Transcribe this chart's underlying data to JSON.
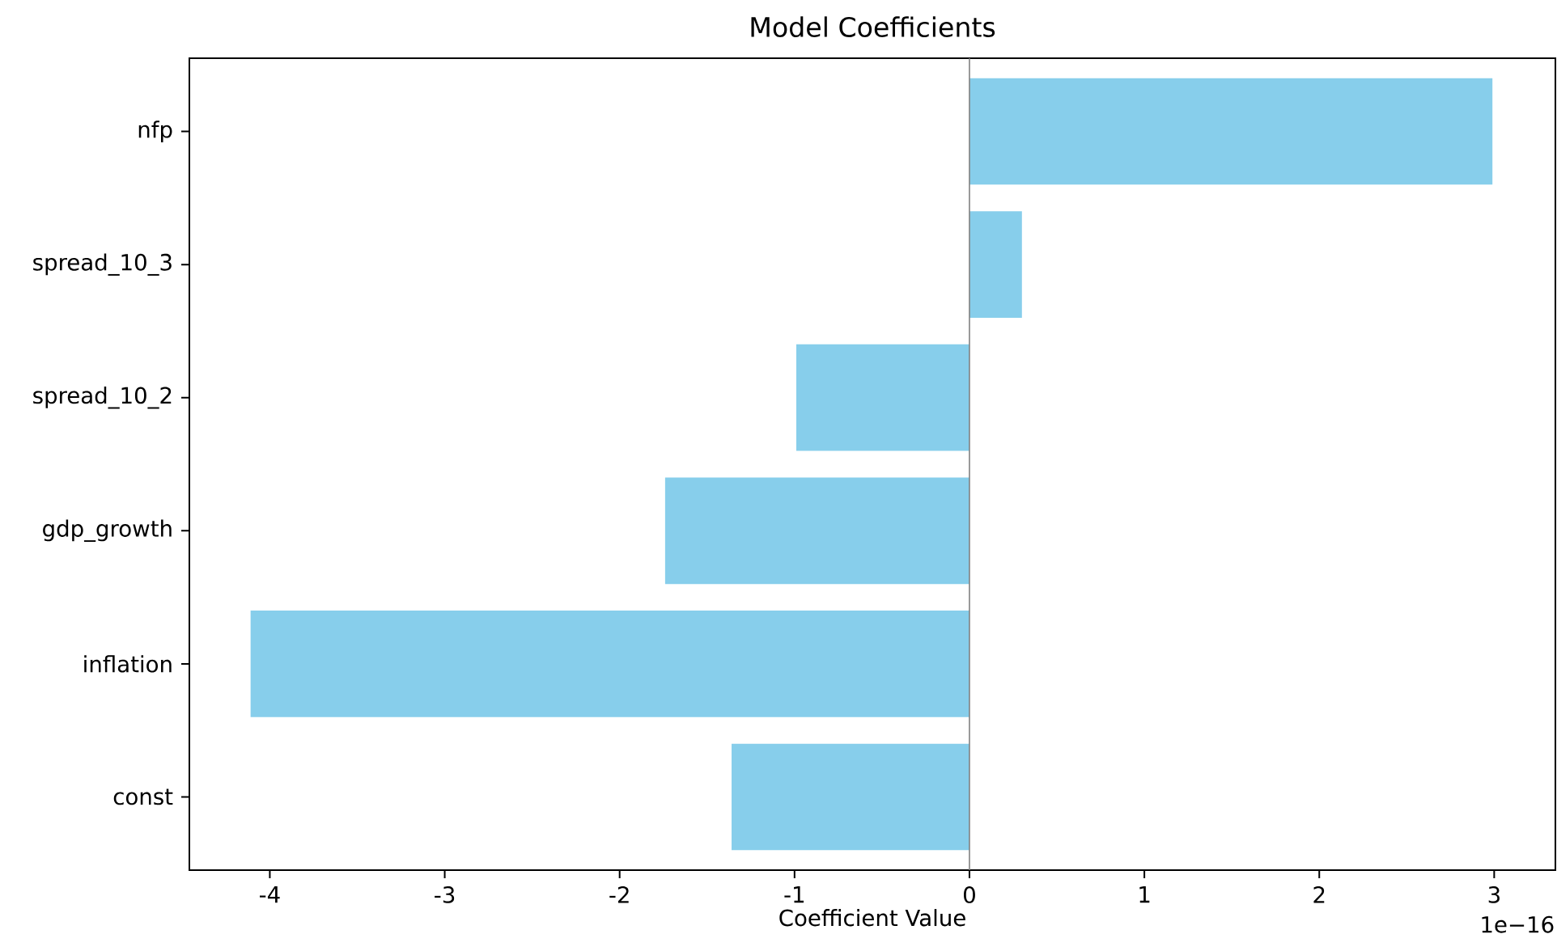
{
  "chart_data": {
    "type": "bar",
    "orientation": "horizontal",
    "title": "Model Coefficients",
    "xlabel": "Coefficient Value",
    "categories": [
      "nfp",
      "spread_10_3",
      "spread_10_2",
      "gdp_growth",
      "inflation",
      "const"
    ],
    "values": [
      2.99,
      0.3,
      -0.99,
      -1.74,
      -4.11,
      -1.36
    ],
    "color": "#87ceeb",
    "xlim": [
      -4.46,
      3.35
    ],
    "xticks": [
      -4,
      -3,
      -2,
      -1,
      0,
      1,
      2,
      3
    ],
    "ref_lines": [
      {
        "axis": "x",
        "value": 0,
        "color": "#808080"
      }
    ],
    "annotations": [
      "1e−16"
    ],
    "grid": false,
    "legend": false
  }
}
